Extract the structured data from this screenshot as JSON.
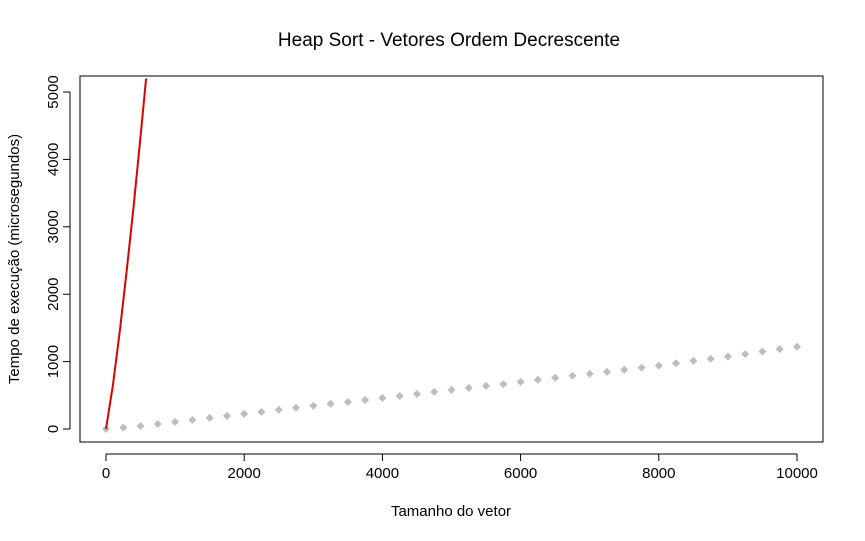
{
  "chart_data": {
    "type": "scatter",
    "title": "Heap Sort - Vetores Ordem Decrescente",
    "xlabel": "Tamanho do vetor",
    "ylabel": "Tempo de execução (microsegundos)",
    "xlim": [
      0,
      10000
    ],
    "ylim": [
      0,
      5000
    ],
    "xticks": [
      "0",
      "2000",
      "4000",
      "6000",
      "8000",
      "10000"
    ],
    "yticks": [
      "0",
      "1000",
      "2000",
      "3000",
      "4000",
      "5000"
    ],
    "grid": false,
    "colors": {
      "points": "#bdbdbd",
      "line": "#dd0000",
      "frame": "#000000"
    },
    "series": [
      {
        "kind": "points",
        "x": [
          0,
          250,
          500,
          750,
          1000,
          1250,
          1500,
          1750,
          2000,
          2250,
          2500,
          2750,
          3000,
          3250,
          3500,
          3750,
          4000,
          4250,
          4500,
          4750,
          5000,
          5250,
          5500,
          5750,
          6000,
          6250,
          6500,
          6750,
          7000,
          7250,
          7500,
          7750,
          8000,
          8250,
          8500,
          8750,
          9000,
          9250,
          9500,
          9750,
          10000
        ],
        "y": [
          0,
          20,
          45,
          75,
          105,
          135,
          165,
          195,
          225,
          255,
          285,
          315,
          345,
          375,
          400,
          430,
          460,
          490,
          520,
          550,
          580,
          610,
          640,
          665,
          700,
          730,
          760,
          790,
          820,
          850,
          880,
          910,
          940,
          975,
          1010,
          1040,
          1075,
          1110,
          1150,
          1185,
          1220
        ]
      },
      {
        "kind": "line",
        "x": [
          0,
          100,
          200,
          300,
          400,
          500,
          580
        ],
        "y": [
          0,
          650,
          1450,
          2350,
          3300,
          4350,
          5200
        ]
      }
    ]
  }
}
